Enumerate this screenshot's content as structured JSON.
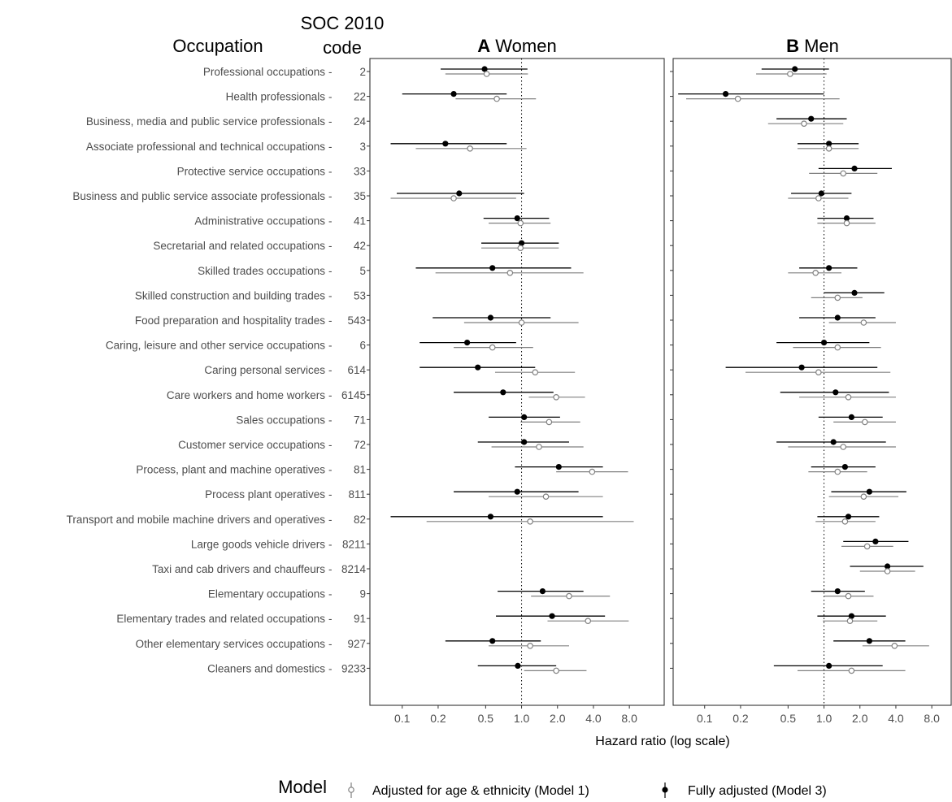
{
  "header": {
    "occupation": "Occupation",
    "soc_line1": "SOC 2010",
    "soc_line2": "code"
  },
  "legend": {
    "title": "Model",
    "m1": "Adjusted for age & ethnicity (Model 1)",
    "m3": "Fully adjusted (Model 3)"
  },
  "colors": {
    "model1": "#808080",
    "model3": "#000000",
    "axis": "#333333"
  },
  "chart_data": {
    "type": "forest",
    "xlabel": "Hazard ratio (log scale)",
    "x_scale": "log",
    "xlim": [
      0.07,
      12
    ],
    "reference_line": 1.0,
    "ticks": [
      "0.1",
      "0.2",
      "0.5",
      "1.0",
      "2.0",
      "4.0",
      "8.0"
    ],
    "series": [
      {
        "name": "Adjusted for age & ethnicity (Model 1)",
        "marker": "open-circle"
      },
      {
        "name": "Fully adjusted (Model 3)",
        "marker": "filled-circle"
      }
    ],
    "rows": [
      {
        "occupation": "Professional occupations",
        "code": "2"
      },
      {
        "occupation": "Health professionals",
        "code": "22"
      },
      {
        "occupation": "Business, media and public service professionals",
        "code": "24"
      },
      {
        "occupation": "Associate professional and technical occupations",
        "code": "3"
      },
      {
        "occupation": "Protective service occupations",
        "code": "33"
      },
      {
        "occupation": "Business and public service associate professionals",
        "code": "35"
      },
      {
        "occupation": "Administrative occupations",
        "code": "41"
      },
      {
        "occupation": "Secretarial and related occupations",
        "code": "42"
      },
      {
        "occupation": "Skilled trades occupations",
        "code": "5"
      },
      {
        "occupation": "Skilled construction and building trades",
        "code": "53"
      },
      {
        "occupation": "Food preparation and hospitality trades",
        "code": "543"
      },
      {
        "occupation": "Caring, leisure and other service occupations",
        "code": "6"
      },
      {
        "occupation": "Caring personal services",
        "code": "614"
      },
      {
        "occupation": "Care workers and home workers",
        "code": "6145"
      },
      {
        "occupation": "Sales occupations",
        "code": "71"
      },
      {
        "occupation": "Customer service occupations",
        "code": "72"
      },
      {
        "occupation": "Process, plant and machine operatives",
        "code": "81"
      },
      {
        "occupation": "Process plant operatives",
        "code": "811"
      },
      {
        "occupation": "Transport and mobile machine drivers and operatives",
        "code": "82"
      },
      {
        "occupation": "Large goods vehicle drivers",
        "code": "8211"
      },
      {
        "occupation": "Taxi and cab drivers and chauffeurs",
        "code": "8214"
      },
      {
        "occupation": "Elementary occupations",
        "code": "9"
      },
      {
        "occupation": "Elementary trades and related occupations",
        "code": "91"
      },
      {
        "occupation": "Other elementary services occupations",
        "code": "927"
      },
      {
        "occupation": "Cleaners and domestics",
        "code": "9233"
      }
    ],
    "panels": [
      {
        "letter": "A",
        "title": "Women",
        "model3": [
          [
            0.49,
            0.21,
            1.12
          ],
          [
            0.27,
            0.1,
            0.75
          ],
          null,
          [
            0.23,
            0.08,
            0.75
          ],
          null,
          [
            0.3,
            0.09,
            1.05
          ],
          [
            0.92,
            0.48,
            1.7
          ],
          [
            1.0,
            0.46,
            2.05
          ],
          [
            0.57,
            0.13,
            2.6
          ],
          null,
          [
            0.55,
            0.18,
            1.75
          ],
          [
            0.35,
            0.14,
            0.9
          ],
          [
            0.43,
            0.14,
            1.3
          ],
          [
            0.7,
            0.27,
            1.85
          ],
          [
            1.05,
            0.53,
            2.1
          ],
          [
            1.05,
            0.43,
            2.5
          ],
          [
            2.05,
            0.88,
            4.8
          ],
          [
            0.92,
            0.27,
            3.0
          ],
          [
            0.55,
            0.08,
            4.8
          ],
          null,
          null,
          [
            1.5,
            0.63,
            3.3
          ],
          [
            1.8,
            0.61,
            5.0
          ],
          [
            0.57,
            0.23,
            1.45
          ],
          [
            0.93,
            0.43,
            1.95
          ]
        ],
        "model1": [
          [
            0.51,
            0.23,
            1.13
          ],
          [
            0.62,
            0.28,
            1.32
          ],
          null,
          [
            0.37,
            0.13,
            1.1
          ],
          null,
          [
            0.27,
            0.08,
            0.9
          ],
          [
            0.98,
            0.53,
            1.75
          ],
          [
            0.98,
            0.46,
            2.05
          ],
          [
            0.8,
            0.19,
            3.3
          ],
          null,
          [
            1.0,
            0.33,
            3.0
          ],
          [
            0.57,
            0.27,
            1.25
          ],
          [
            1.3,
            0.6,
            2.8
          ],
          [
            1.95,
            1.15,
            3.4
          ],
          [
            1.7,
            0.98,
            3.1
          ],
          [
            1.4,
            0.56,
            3.3
          ],
          [
            3.9,
            1.95,
            7.8
          ],
          [
            1.6,
            0.53,
            4.8
          ],
          [
            1.18,
            0.16,
            8.7
          ],
          null,
          null,
          [
            2.5,
            1.2,
            5.5
          ],
          [
            3.6,
            1.65,
            7.9
          ],
          [
            1.18,
            0.53,
            2.5
          ],
          [
            1.95,
            1.05,
            3.5
          ]
        ]
      },
      {
        "letter": "B",
        "title": "Men",
        "model3": [
          [
            0.57,
            0.3,
            1.1
          ],
          [
            0.15,
            0.06,
            1.0
          ],
          [
            0.78,
            0.4,
            1.55
          ],
          [
            1.1,
            0.6,
            1.95
          ],
          [
            1.8,
            0.9,
            3.7
          ],
          [
            0.95,
            0.53,
            1.7
          ],
          [
            1.55,
            0.88,
            2.6
          ],
          null,
          [
            1.1,
            0.62,
            1.9
          ],
          [
            1.8,
            1.0,
            3.2
          ],
          [
            1.3,
            0.62,
            2.7
          ],
          [
            1.0,
            0.4,
            2.4
          ],
          [
            0.65,
            0.15,
            2.8
          ],
          [
            1.25,
            0.43,
            3.5
          ],
          [
            1.7,
            0.9,
            3.1
          ],
          [
            1.2,
            0.4,
            3.3
          ],
          [
            1.5,
            0.78,
            2.7
          ],
          [
            2.4,
            1.15,
            4.9
          ],
          [
            1.6,
            0.88,
            2.9
          ],
          [
            2.7,
            1.45,
            5.1
          ],
          [
            3.4,
            1.65,
            6.8
          ],
          [
            1.3,
            0.78,
            2.2
          ],
          [
            1.7,
            0.88,
            3.3
          ],
          [
            2.4,
            1.2,
            4.8
          ],
          [
            1.1,
            0.38,
            3.1
          ]
        ],
        "model1": [
          [
            0.52,
            0.27,
            1.05
          ],
          [
            0.19,
            0.07,
            1.35
          ],
          [
            0.68,
            0.34,
            1.45
          ],
          [
            1.1,
            0.6,
            1.95
          ],
          [
            1.45,
            0.75,
            2.8
          ],
          [
            0.9,
            0.5,
            1.6
          ],
          [
            1.55,
            0.88,
            2.7
          ],
          null,
          [
            0.85,
            0.5,
            1.4
          ],
          [
            1.3,
            0.78,
            2.1
          ],
          [
            2.15,
            1.1,
            4.0
          ],
          [
            1.3,
            0.55,
            3.0
          ],
          [
            0.9,
            0.22,
            3.6
          ],
          [
            1.6,
            0.62,
            4.0
          ],
          [
            2.2,
            1.2,
            4.0
          ],
          [
            1.45,
            0.5,
            4.0
          ],
          [
            1.3,
            0.74,
            2.3
          ],
          [
            2.15,
            1.1,
            4.2
          ],
          [
            1.5,
            0.85,
            2.7
          ],
          [
            2.3,
            1.4,
            3.8
          ],
          [
            3.4,
            2.0,
            5.8
          ],
          [
            1.6,
            1.0,
            2.6
          ],
          [
            1.65,
            0.98,
            2.8
          ],
          [
            3.9,
            2.1,
            7.6
          ],
          [
            1.7,
            0.6,
            4.8
          ]
        ]
      }
    ]
  }
}
